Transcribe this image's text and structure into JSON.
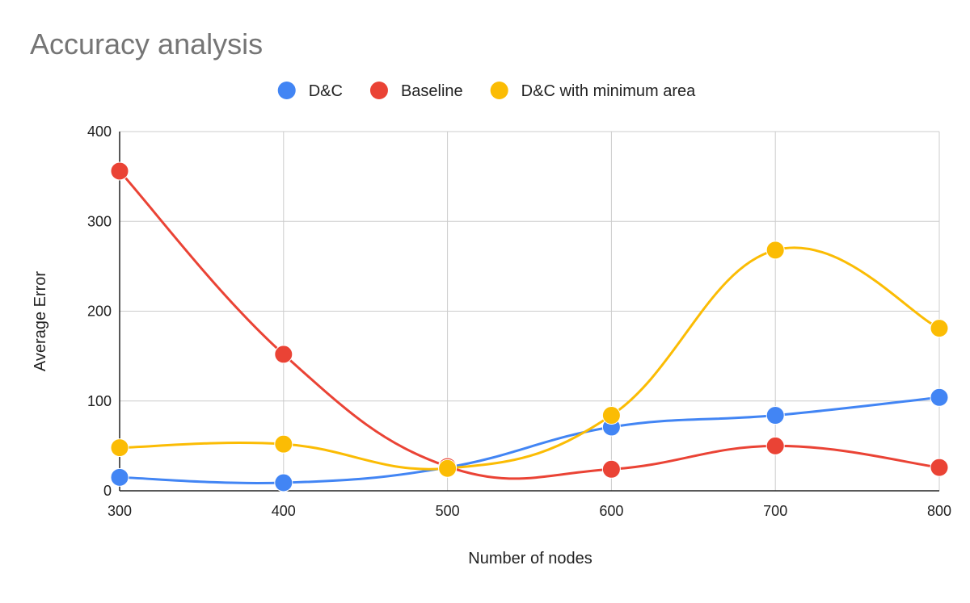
{
  "chart_data": {
    "type": "line",
    "title": "Accuracy analysis",
    "xlabel": "Number of nodes",
    "ylabel": "Average Error",
    "x": [
      300,
      400,
      500,
      600,
      700,
      800
    ],
    "xlim": [
      300,
      800
    ],
    "ylim": [
      0,
      400
    ],
    "x_ticks": [
      "300",
      "400",
      "500",
      "600",
      "700",
      "800"
    ],
    "y_ticks": [
      "0",
      "100",
      "200",
      "300",
      "400"
    ],
    "grid": true,
    "smooth": true,
    "legend_position": "top",
    "series": [
      {
        "name": "D&C",
        "color": "#4285f4",
        "values": [
          15,
          9,
          26,
          71,
          84,
          104
        ]
      },
      {
        "name": "Baseline",
        "color": "#ea4335",
        "values": [
          356,
          152,
          27,
          24,
          50,
          26
        ]
      },
      {
        "name": "D&C with minimum area",
        "color": "#fbbc04",
        "values": [
          48,
          52,
          25,
          84,
          268,
          181
        ]
      }
    ]
  }
}
